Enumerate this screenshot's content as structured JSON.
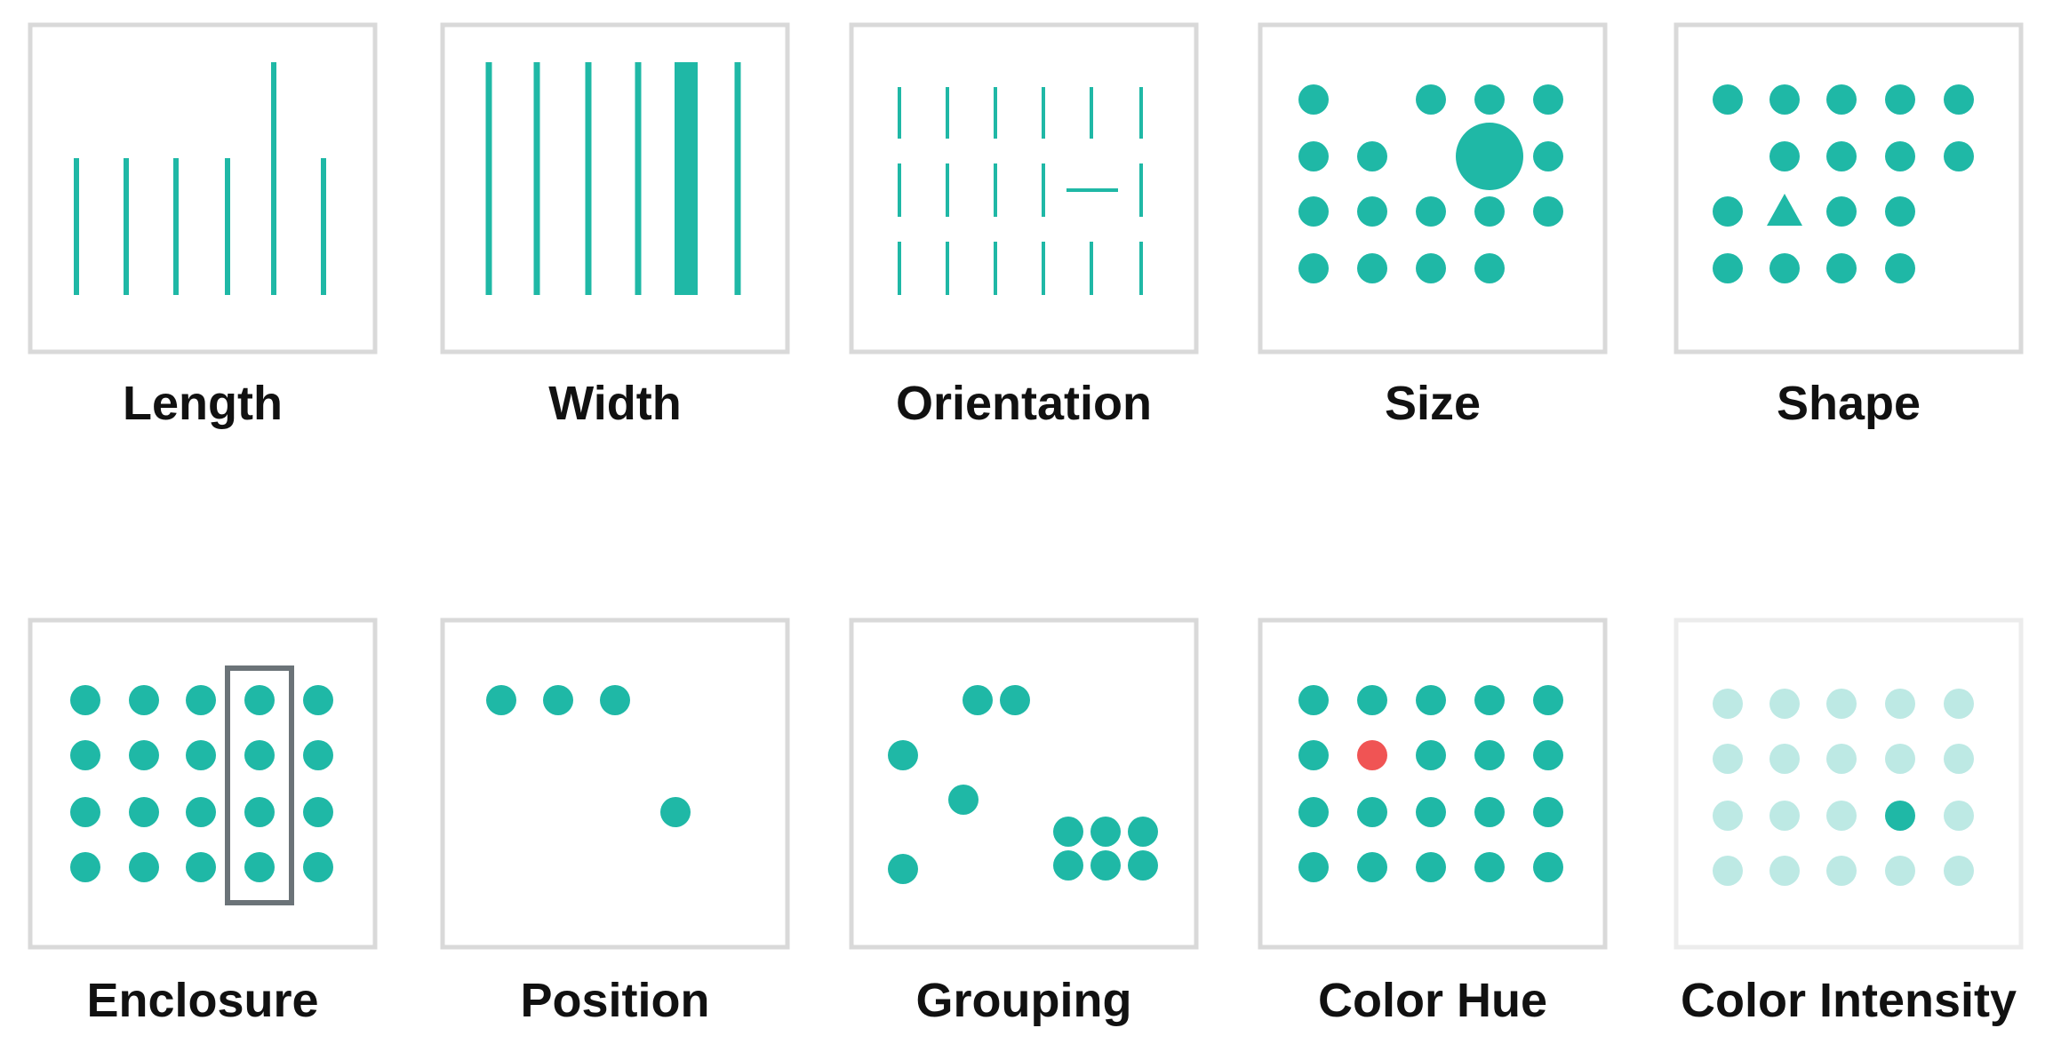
{
  "colors": {
    "teal": "#1fb8a6",
    "teal_light": "#bde9e4",
    "red": "#f05454",
    "frame": "#d9d9d9",
    "frame_light": "#ececec",
    "enclosure": "#6b7378",
    "text": "#111111"
  },
  "panels": [
    {
      "id": "length",
      "label": "Length"
    },
    {
      "id": "width",
      "label": "Width"
    },
    {
      "id": "orientation",
      "label": "Orientation"
    },
    {
      "id": "size",
      "label": "Size"
    },
    {
      "id": "shape",
      "label": "Shape"
    },
    {
      "id": "enclosure",
      "label": "Enclosure"
    },
    {
      "id": "position",
      "label": "Position"
    },
    {
      "id": "grouping",
      "label": "Grouping"
    },
    {
      "id": "color-hue",
      "label": "Color Hue"
    },
    {
      "id": "color-intensity",
      "label": "Color Intensity"
    }
  ]
}
